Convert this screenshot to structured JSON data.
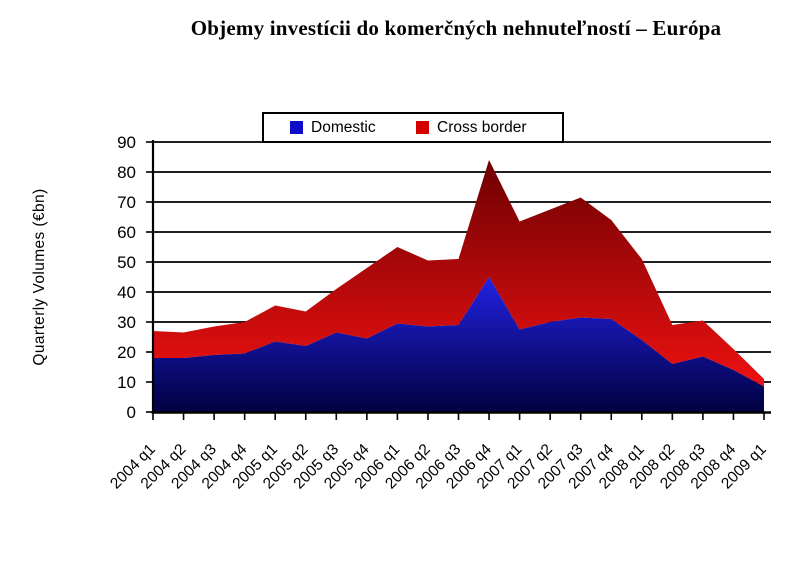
{
  "legend": {
    "domestic": "Domestic",
    "cross_border": "Cross border"
  },
  "colors": {
    "domestic_top": "#2222E4",
    "domestic_bottom": "#000040",
    "cross_top": "#6E0002",
    "cross_bottom": "#EE1111",
    "legend_domestic": "#0D0DC9",
    "legend_cross": "#D40000",
    "grid": "#000000",
    "axis": "#000000",
    "text": "#000000"
  },
  "chart_data": {
    "type": "area",
    "stacked": true,
    "title": "Objemy investícii do komerčných nehnuteľností – Európa",
    "ylabel": "Quarterly Volumes (€bn)",
    "xlabel": "",
    "ylim": [
      0,
      90
    ],
    "y_ticks": [
      0,
      10,
      20,
      30,
      40,
      50,
      60,
      70,
      80,
      90
    ],
    "grid": true,
    "legend_position": "top",
    "categories": [
      "2004 q1",
      "2004 q2",
      "2004 q3",
      "2004 q4",
      "2005 q1",
      "2005 q2",
      "2005 q3",
      "2005 q4",
      "2006 q1",
      "2006 q2",
      "2006 q3",
      "2006 q4",
      "2007 q1",
      "2007 q2",
      "2007 q3",
      "2007 q4",
      "2008 q1",
      "2008 q2",
      "2008 q3",
      "2008 q4",
      "2009 q1"
    ],
    "series": [
      {
        "name": "Domestic",
        "values": [
          18,
          18,
          19,
          19.5,
          23.5,
          22,
          26.5,
          24.5,
          29.5,
          28.5,
          29,
          45,
          27.5,
          30,
          31.5,
          31,
          24,
          16,
          18.5,
          14,
          8.5
        ]
      },
      {
        "name": "Cross border",
        "values": [
          9,
          8.5,
          9.5,
          10.5,
          12,
          11.5,
          14.5,
          23.5,
          25.5,
          22,
          22,
          39,
          36,
          37.5,
          40,
          33,
          27,
          13,
          12,
          7,
          2.5
        ]
      }
    ]
  }
}
